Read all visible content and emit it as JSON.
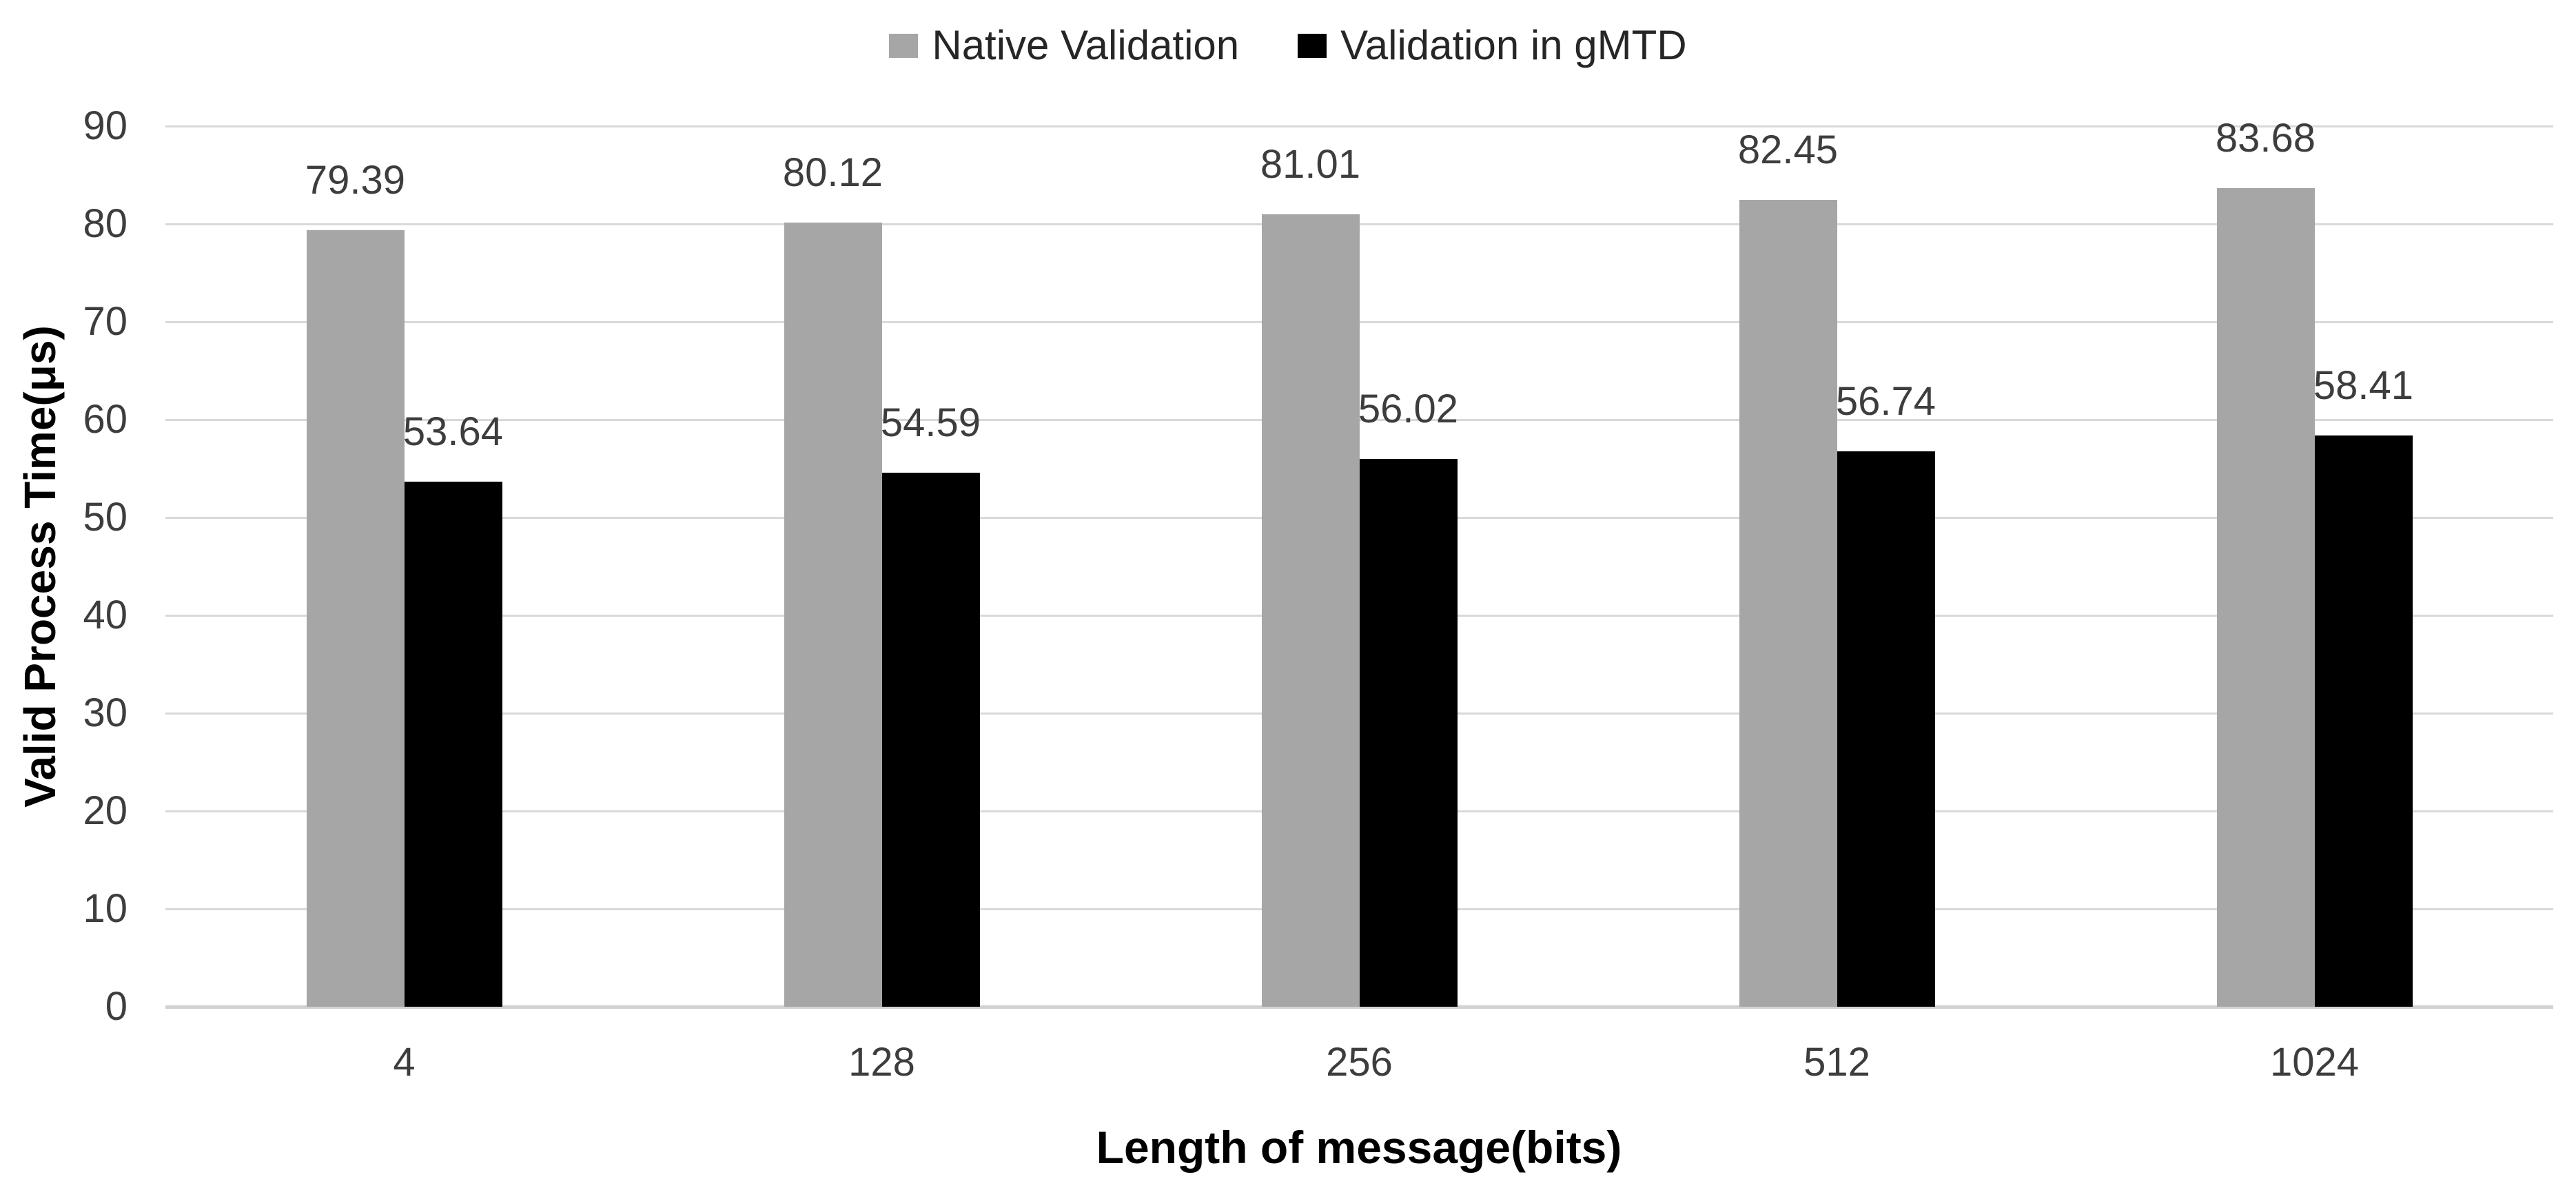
{
  "chart_data": {
    "type": "bar",
    "title": "",
    "categories": [
      "4",
      "128",
      "256",
      "512",
      "1024"
    ],
    "series": [
      {
        "name": "Native Validation",
        "color": "#A6A6A6",
        "values": [
          79.39,
          80.12,
          81.01,
          82.45,
          83.68
        ]
      },
      {
        "name": "Validation in gMTD",
        "color": "#000000",
        "values": [
          53.64,
          54.59,
          56.02,
          56.74,
          58.41
        ]
      }
    ],
    "data_labels": [
      "79.39",
      "80.12",
      "81.01",
      "82.45",
      "83.68",
      "53.64",
      "54.59",
      "56.02",
      "56.74",
      "58.41"
    ],
    "xlabel": "Length of message(bits)",
    "ylabel": "Valid Process Time(μs)",
    "ylim": [
      0,
      90
    ],
    "yticks": [
      0,
      10,
      20,
      30,
      40,
      50,
      60,
      70,
      80,
      90
    ],
    "grid": true,
    "gridline_color": "#D9D9D9",
    "legend_position": "top",
    "text_color": "#3d3d3d",
    "background": "#ffffff"
  }
}
